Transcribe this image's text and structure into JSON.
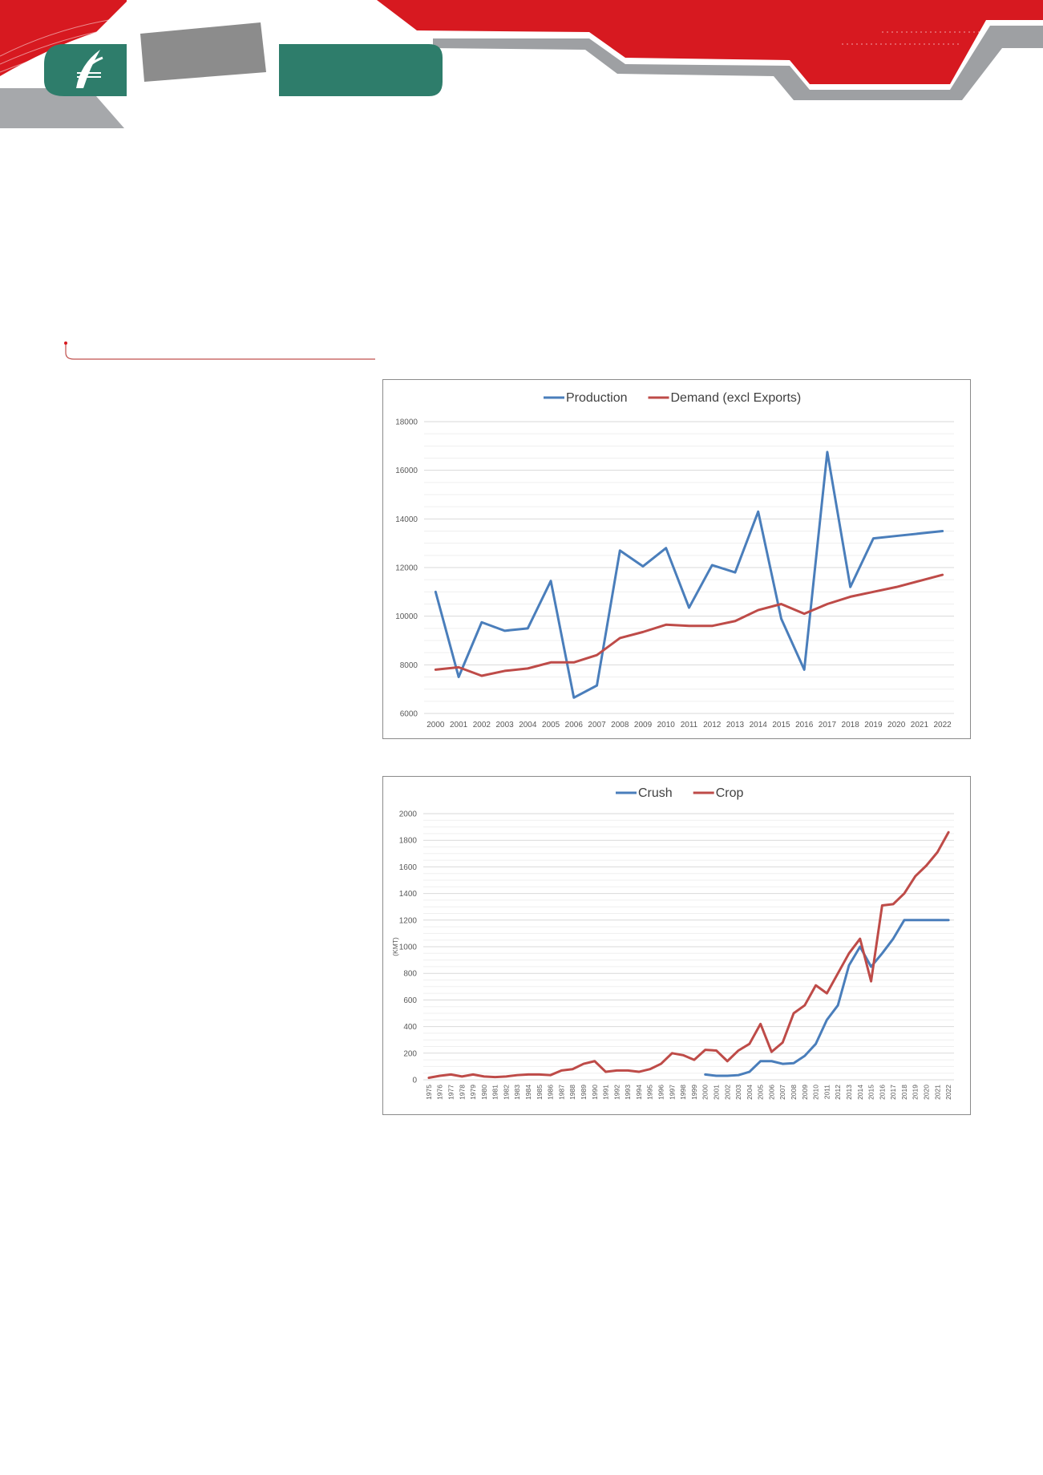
{
  "header": {
    "logo_icon": "leaf-logo-icon",
    "colors": {
      "red": "#d71920",
      "green": "#2e7d6b",
      "grey": "#9ea0a3"
    }
  },
  "chart_data": [
    {
      "type": "line",
      "title": "",
      "xlabel": "",
      "ylabel": "",
      "ylim": [
        6000,
        18000
      ],
      "yticks": [
        6000,
        8000,
        10000,
        12000,
        14000,
        16000,
        18000
      ],
      "grid": true,
      "legend_position": "top",
      "categories": [
        "2000",
        "2001",
        "2002",
        "2003",
        "2004",
        "2005",
        "2006",
        "2007",
        "2008",
        "2009",
        "2010",
        "2011",
        "2012",
        "2013",
        "2014",
        "2015",
        "2016",
        "2017",
        "2018",
        "2019",
        "2020",
        "2021",
        "2022"
      ],
      "series": [
        {
          "name": "Production",
          "color": "#4a7ebb",
          "values": [
            11000,
            7500,
            9750,
            9400,
            9500,
            11450,
            6650,
            7150,
            12700,
            12050,
            12800,
            10350,
            12100,
            11800,
            14300,
            9900,
            7800,
            16750,
            11200,
            13200,
            13300,
            13400,
            13500
          ]
        },
        {
          "name": "Demand (excl Exports)",
          "color": "#be4b48",
          "values": [
            7800,
            7900,
            7550,
            7750,
            7850,
            8100,
            8100,
            8400,
            9100,
            9350,
            9650,
            9600,
            9600,
            9800,
            10250,
            10500,
            10100,
            10500,
            10800,
            11000,
            11200,
            11450,
            11700
          ]
        }
      ]
    },
    {
      "type": "line",
      "title": "",
      "xlabel": "",
      "ylabel": "(KMT)",
      "ylim": [
        0,
        2000
      ],
      "yticks": [
        0,
        200,
        400,
        600,
        800,
        1000,
        1200,
        1400,
        1600,
        1800,
        2000
      ],
      "grid": true,
      "legend_position": "top",
      "categories": [
        "1975",
        "1976",
        "1977",
        "1978",
        "1979",
        "1980",
        "1981",
        "1982",
        "1983",
        "1984",
        "1985",
        "1986",
        "1987",
        "1988",
        "1989",
        "1990",
        "1991",
        "1992",
        "1993",
        "1994",
        "1995",
        "1996",
        "1997",
        "1998",
        "1999",
        "2000",
        "2001",
        "2002",
        "2003",
        "2004",
        "2005",
        "2006",
        "2007",
        "2008",
        "2009",
        "2010",
        "2011",
        "2012",
        "2013",
        "2014",
        "2015",
        "2016",
        "2017",
        "2018",
        "2019",
        "2020",
        "2021",
        "2022"
      ],
      "series": [
        {
          "name": "Crush",
          "color": "#4a7ebb",
          "values": [
            null,
            null,
            null,
            null,
            null,
            null,
            null,
            null,
            null,
            null,
            null,
            null,
            null,
            null,
            null,
            null,
            null,
            null,
            null,
            null,
            null,
            null,
            null,
            null,
            null,
            40,
            30,
            30,
            35,
            60,
            140,
            140,
            120,
            125,
            180,
            270,
            450,
            560,
            860,
            1000,
            850,
            950,
            1060,
            1200,
            1200,
            1200,
            1200,
            1200
          ]
        },
        {
          "name": "Crop",
          "color": "#be4b48",
          "values": [
            15,
            30,
            40,
            25,
            40,
            25,
            20,
            25,
            35,
            40,
            40,
            35,
            70,
            80,
            120,
            140,
            60,
            70,
            70,
            60,
            80,
            120,
            200,
            185,
            150,
            225,
            220,
            140,
            220,
            270,
            420,
            210,
            280,
            500,
            560,
            710,
            650,
            800,
            950,
            1060,
            740,
            1310,
            1320,
            1400,
            1530,
            1610,
            1710,
            1860
          ]
        }
      ]
    }
  ]
}
